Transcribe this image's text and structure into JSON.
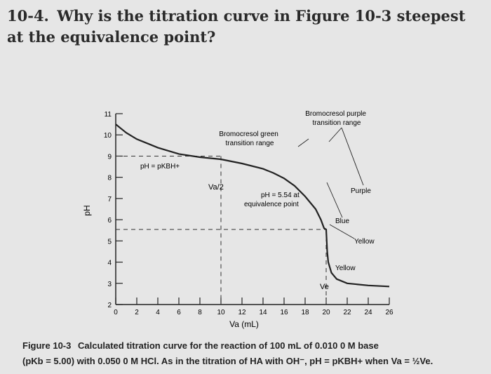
{
  "question": {
    "number": "10-4.",
    "text": "Why is the titration curve in Figure 10-3 steepest at the equivalence point?"
  },
  "figure": {
    "caption_label": "Figure 10-3",
    "caption_line1": "Calculated titration curve for the reaction of 100 mL of 0.010 0 M base",
    "caption_line2": "(pKb = 5.00) with 0.050 0 M HCl. As in the titration of HA with OH⁻, pH = pKBH+ when Va = ½Ve."
  },
  "chart_data": {
    "type": "line",
    "title": "",
    "xlabel": "Va (mL)",
    "ylabel": "pH",
    "xlim": [
      0,
      26
    ],
    "ylim": [
      2,
      11
    ],
    "x_ticks": [
      "0",
      "2",
      "4",
      "6",
      "8",
      "10",
      "12",
      "14",
      "16",
      "18",
      "20",
      "22",
      "24",
      "26"
    ],
    "y_ticks": [
      "2",
      "3",
      "4",
      "5",
      "6",
      "7",
      "8",
      "9",
      "10",
      "11"
    ],
    "series": [
      {
        "points": [
          [
            0,
            10.5
          ],
          [
            0.5,
            10.3
          ],
          [
            1,
            10.1
          ],
          [
            2,
            9.8
          ],
          [
            3,
            9.6
          ],
          [
            4,
            9.4
          ],
          [
            5,
            9.25
          ],
          [
            6,
            9.1
          ],
          [
            8,
            8.95
          ],
          [
            10,
            8.85
          ],
          [
            12,
            8.65
          ],
          [
            14,
            8.4
          ],
          [
            15,
            8.2
          ],
          [
            16,
            7.95
          ],
          [
            17,
            7.6
          ],
          [
            18,
            7.1
          ],
          [
            19,
            6.5
          ],
          [
            19.5,
            6.0
          ],
          [
            19.8,
            5.6
          ],
          [
            20,
            5.54
          ],
          [
            20.1,
            4.5
          ],
          [
            20.2,
            4.0
          ],
          [
            20.5,
            3.5
          ],
          [
            21,
            3.2
          ],
          [
            22,
            3.0
          ],
          [
            24,
            2.9
          ],
          [
            26,
            2.85
          ]
        ]
      }
    ],
    "annotations": {
      "ph_pk": "pH = pKBH+",
      "half_point": "Va/2",
      "equivalence": "pH = 5.54 at equivalence point",
      "ve": "Ve",
      "bromocresol_green": "Bromocresol green transition range",
      "bromocresol_purple": "Bromocresol purple transition range",
      "purple": "Purple",
      "blue": "Blue",
      "yellow_1": "Yellow",
      "yellow_2": "Yellow"
    }
  }
}
